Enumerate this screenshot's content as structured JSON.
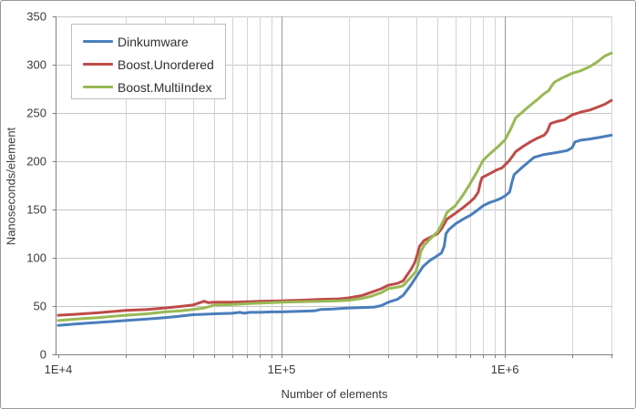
{
  "chart_data": {
    "type": "line",
    "x_scale": "log",
    "xlabel": "Number of elements",
    "ylabel": "Nanoseconds/element",
    "xlim": [
      10000,
      3000000
    ],
    "ylim": [
      0,
      350
    ],
    "grid": true,
    "legend_position": "top-left",
    "x_ticks": [
      {
        "label": "1E+4",
        "value": 10000
      },
      {
        "label": "1E+5",
        "value": 100000
      },
      {
        "label": "1E+6",
        "value": 1000000
      }
    ],
    "y_ticks": [
      {
        "label": "0",
        "value": 0
      },
      {
        "label": "50",
        "value": 50
      },
      {
        "label": "100",
        "value": 100
      },
      {
        "label": "150",
        "value": 150
      },
      {
        "label": "200",
        "value": 200
      },
      {
        "label": "250",
        "value": 250
      },
      {
        "label": "300",
        "value": 300
      },
      {
        "label": "350",
        "value": 350
      }
    ],
    "series": [
      {
        "name": "Dinkumware",
        "color": "#4A7EBB",
        "points": [
          [
            10000,
            30
          ],
          [
            12000,
            31.5
          ],
          [
            15000,
            33
          ],
          [
            20000,
            35
          ],
          [
            25000,
            36.5
          ],
          [
            30000,
            38
          ],
          [
            35000,
            39.5
          ],
          [
            40000,
            41
          ],
          [
            45000,
            41.5
          ],
          [
            50000,
            42
          ],
          [
            60000,
            42.5
          ],
          [
            65000,
            43.5
          ],
          [
            68000,
            42.5
          ],
          [
            72000,
            43.5
          ],
          [
            80000,
            43.5
          ],
          [
            90000,
            44
          ],
          [
            100000,
            44
          ],
          [
            120000,
            44.5
          ],
          [
            140000,
            45
          ],
          [
            150000,
            46.5
          ],
          [
            170000,
            47
          ],
          [
            200000,
            48
          ],
          [
            230000,
            48.5
          ],
          [
            260000,
            49
          ],
          [
            280000,
            50.5
          ],
          [
            300000,
            54
          ],
          [
            330000,
            57
          ],
          [
            350000,
            61
          ],
          [
            380000,
            72
          ],
          [
            400000,
            80
          ],
          [
            430000,
            91
          ],
          [
            460000,
            97
          ],
          [
            490000,
            101
          ],
          [
            520000,
            105
          ],
          [
            535000,
            112
          ],
          [
            545000,
            125
          ],
          [
            560000,
            129
          ],
          [
            600000,
            135
          ],
          [
            650000,
            140
          ],
          [
            700000,
            144
          ],
          [
            750000,
            149
          ],
          [
            800000,
            154
          ],
          [
            850000,
            157
          ],
          [
            900000,
            159
          ],
          [
            950000,
            161
          ],
          [
            1000000,
            164
          ],
          [
            1050000,
            168
          ],
          [
            1075000,
            178
          ],
          [
            1100000,
            186
          ],
          [
            1200000,
            194
          ],
          [
            1350000,
            204
          ],
          [
            1500000,
            207
          ],
          [
            1700000,
            209
          ],
          [
            1900000,
            211
          ],
          [
            2000000,
            214
          ],
          [
            2060000,
            220
          ],
          [
            2200000,
            222
          ],
          [
            2400000,
            223
          ],
          [
            2700000,
            225
          ],
          [
            3000000,
            227
          ]
        ]
      },
      {
        "name": "Boost.Unordered",
        "color": "#BE4B48",
        "points": [
          [
            10000,
            40.5
          ],
          [
            12000,
            41.5
          ],
          [
            15000,
            43
          ],
          [
            20000,
            45.5
          ],
          [
            25000,
            46.5
          ],
          [
            30000,
            48
          ],
          [
            35000,
            49.5
          ],
          [
            40000,
            51
          ],
          [
            43000,
            53.5
          ],
          [
            45000,
            55
          ],
          [
            47000,
            53.5
          ],
          [
            50000,
            54
          ],
          [
            60000,
            54
          ],
          [
            70000,
            54.5
          ],
          [
            80000,
            55
          ],
          [
            100000,
            55.5
          ],
          [
            120000,
            56
          ],
          [
            150000,
            57
          ],
          [
            180000,
            57.5
          ],
          [
            200000,
            58.5
          ],
          [
            230000,
            61
          ],
          [
            250000,
            64
          ],
          [
            280000,
            68
          ],
          [
            300000,
            71.5
          ],
          [
            330000,
            73.5
          ],
          [
            350000,
            76
          ],
          [
            380000,
            88
          ],
          [
            395000,
            95
          ],
          [
            405000,
            103
          ],
          [
            415000,
            112
          ],
          [
            435000,
            118
          ],
          [
            470000,
            122
          ],
          [
            500000,
            125
          ],
          [
            520000,
            130
          ],
          [
            550000,
            140
          ],
          [
            600000,
            146
          ],
          [
            650000,
            152
          ],
          [
            700000,
            158
          ],
          [
            730000,
            162
          ],
          [
            760000,
            168
          ],
          [
            775000,
            177
          ],
          [
            790000,
            183
          ],
          [
            820000,
            185
          ],
          [
            870000,
            188
          ],
          [
            920000,
            191
          ],
          [
            970000,
            193
          ],
          [
            1000000,
            196
          ],
          [
            1050000,
            201
          ],
          [
            1120000,
            210
          ],
          [
            1200000,
            215
          ],
          [
            1300000,
            220
          ],
          [
            1400000,
            224
          ],
          [
            1500000,
            227
          ],
          [
            1550000,
            231
          ],
          [
            1600000,
            239
          ],
          [
            1700000,
            241
          ],
          [
            1850000,
            243
          ],
          [
            2000000,
            248
          ],
          [
            2200000,
            251
          ],
          [
            2400000,
            253
          ],
          [
            2600000,
            256
          ],
          [
            2800000,
            259
          ],
          [
            3000000,
            263
          ]
        ]
      },
      {
        "name": "Boost.MultiIndex",
        "color": "#98B954",
        "points": [
          [
            10000,
            35
          ],
          [
            12000,
            36.5
          ],
          [
            15000,
            38
          ],
          [
            20000,
            40.5
          ],
          [
            25000,
            42
          ],
          [
            30000,
            44
          ],
          [
            35000,
            45
          ],
          [
            40000,
            46.5
          ],
          [
            45000,
            48
          ],
          [
            50000,
            51
          ],
          [
            60000,
            51.5
          ],
          [
            70000,
            52.5
          ],
          [
            80000,
            53
          ],
          [
            100000,
            54
          ],
          [
            120000,
            54.5
          ],
          [
            150000,
            55
          ],
          [
            180000,
            55.5
          ],
          [
            200000,
            56
          ],
          [
            230000,
            58
          ],
          [
            250000,
            60
          ],
          [
            280000,
            64
          ],
          [
            300000,
            68
          ],
          [
            330000,
            69.5
          ],
          [
            350000,
            71
          ],
          [
            380000,
            80
          ],
          [
            400000,
            86
          ],
          [
            410000,
            95
          ],
          [
            420000,
            106
          ],
          [
            435000,
            113
          ],
          [
            470000,
            121
          ],
          [
            500000,
            127
          ],
          [
            530000,
            138
          ],
          [
            550000,
            147
          ],
          [
            600000,
            154
          ],
          [
            650000,
            165
          ],
          [
            700000,
            177
          ],
          [
            750000,
            189
          ],
          [
            800000,
            201
          ],
          [
            850000,
            207
          ],
          [
            900000,
            212
          ],
          [
            950000,
            217
          ],
          [
            1000000,
            222
          ],
          [
            1060000,
            233
          ],
          [
            1120000,
            245
          ],
          [
            1200000,
            251
          ],
          [
            1300000,
            258
          ],
          [
            1400000,
            264
          ],
          [
            1500000,
            270
          ],
          [
            1570000,
            273
          ],
          [
            1620000,
            278
          ],
          [
            1670000,
            282
          ],
          [
            1800000,
            286
          ],
          [
            2000000,
            291
          ],
          [
            2200000,
            294
          ],
          [
            2400000,
            298
          ],
          [
            2600000,
            303
          ],
          [
            2800000,
            309
          ],
          [
            3000000,
            312
          ]
        ]
      }
    ]
  },
  "appearance": {
    "grid_minor_color": "#D4D4D4",
    "grid_major_color": "#9B9B9B",
    "grid_horizontal_color": "#C6C6C6",
    "axis_color": "#808080",
    "tick_label_color": "#3B3B3B",
    "plot_background": "#FFFFFF"
  }
}
